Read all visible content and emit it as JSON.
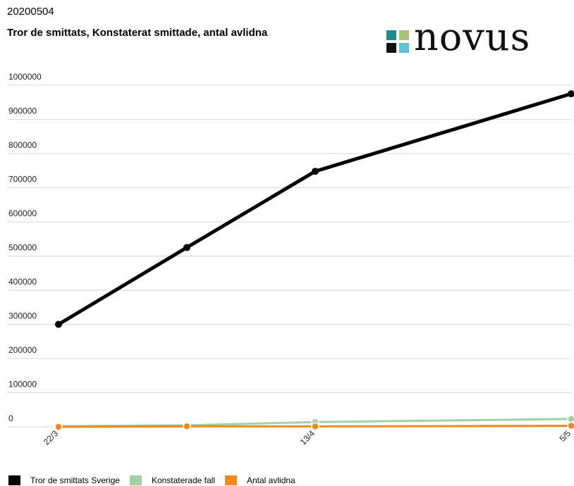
{
  "header": {
    "date": "20200504",
    "title": "Tror de smittats, Konstaterat smittade, antal avlidna"
  },
  "logo": {
    "text": "NOVUS",
    "colors": [
      "#1f8a8a",
      "#a8c47a",
      "#111111",
      "#5bc2cf"
    ]
  },
  "chart_data": {
    "type": "line",
    "x": [
      "22/3",
      "",
      "13/4",
      "5/5"
    ],
    "ylim": [
      0,
      1000000
    ],
    "yticks": [
      "0",
      "100000",
      "200000",
      "300000",
      "400000",
      "500000",
      "600000",
      "700000",
      "800000",
      "900000",
      "1000000"
    ],
    "grid": true,
    "legend_position": "bottom-left",
    "series": [
      {
        "name": "Tror de smittats Sverige",
        "color": "#000000",
        "values": [
          300000,
          525000,
          748000,
          975000
        ]
      },
      {
        "name": "Konstaterade fall",
        "color": "#a3d1a6",
        "values": [
          2000,
          4500,
          14000,
          23000
        ]
      },
      {
        "name": "Antal avlidna",
        "color": "#f0891e",
        "values": [
          0,
          1500,
          1300,
          3000
        ]
      }
    ]
  }
}
